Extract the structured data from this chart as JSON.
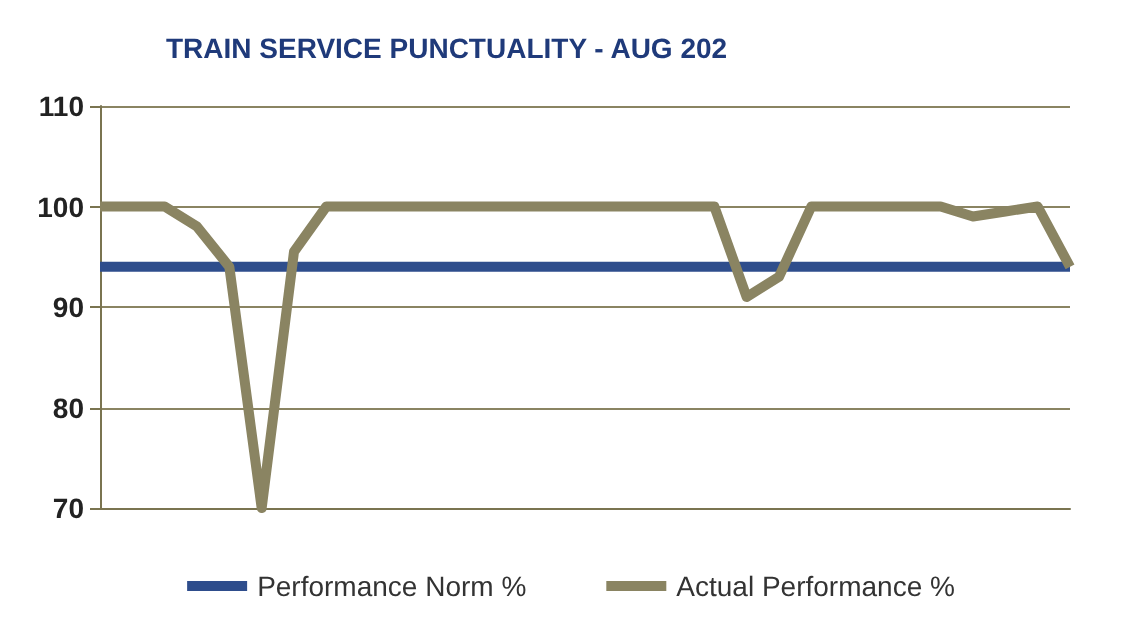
{
  "chart_data": {
    "type": "line",
    "title": "TRAIN SERVICE PUNCTUALITY - AUG 202",
    "categories": [
      null,
      null,
      null,
      null,
      null,
      null,
      null,
      null,
      null,
      null,
      null,
      null,
      null,
      null,
      null,
      null,
      null,
      null,
      null,
      null,
      null,
      null,
      null,
      null,
      null,
      null,
      null,
      null,
      null,
      null,
      null
    ],
    "series": [
      {
        "name": "Performance Norm %",
        "color": "#2e4d8c",
        "values": [
          94,
          94,
          94,
          94,
          94,
          94,
          94,
          94,
          94,
          94,
          94,
          94,
          94,
          94,
          94,
          94,
          94,
          94,
          94,
          94,
          94,
          94,
          94,
          94,
          94,
          94,
          94,
          94,
          94,
          94,
          94
        ]
      },
      {
        "name": "Actual Performance %",
        "color": "#8a8462",
        "values": [
          100,
          100,
          100,
          98,
          94,
          70,
          95.5,
          100,
          100,
          100,
          100,
          100,
          100,
          100,
          100,
          100,
          100,
          100,
          100,
          100,
          91,
          93,
          100,
          100,
          100,
          100,
          100,
          99,
          99.5,
          100,
          94
        ]
      }
    ],
    "ylim": [
      70,
      110
    ],
    "yticks": [
      70,
      80,
      90,
      100,
      110
    ],
    "grid": "y",
    "legend": "bottom",
    "marker": "none",
    "line_style": "solid"
  }
}
